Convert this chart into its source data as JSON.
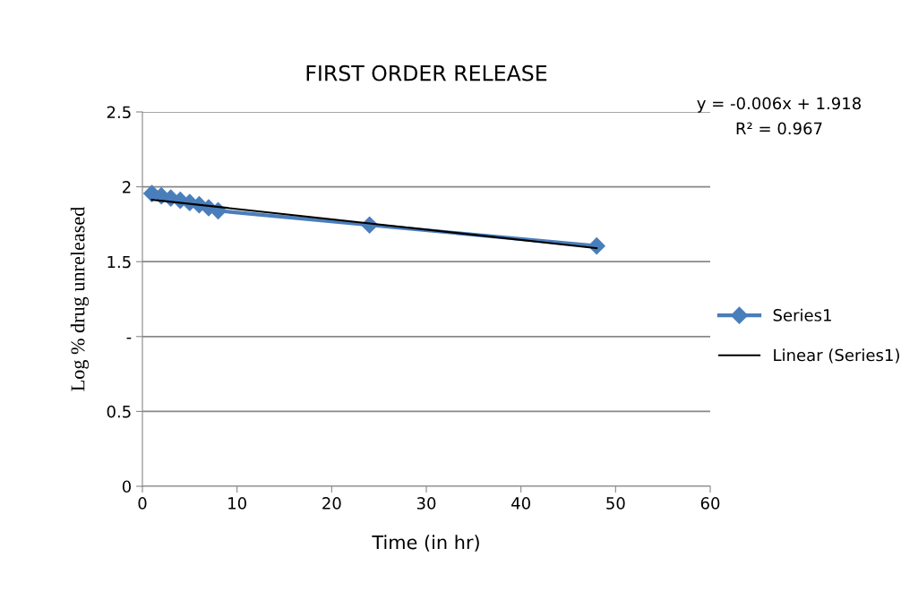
{
  "chart_data": {
    "type": "line",
    "title": "FIRST ORDER RELEASE",
    "xlabel": "Time (in hr)",
    "ylabel": "Log % drug unreleased",
    "series": [
      {
        "name": "Series1",
        "color": "#4a7ebb",
        "x": [
          1,
          2,
          3,
          4,
          5,
          6,
          7,
          8,
          24,
          48
        ],
        "values": [
          1.955,
          1.94,
          1.925,
          1.91,
          1.895,
          1.88,
          1.86,
          1.84,
          1.745,
          1.605
        ],
        "marker": "diamond"
      },
      {
        "name": "Linear (Series1)",
        "color": "#000000",
        "x": [
          1,
          48
        ],
        "values": [
          1.914,
          1.59
        ],
        "marker": "none"
      }
    ],
    "xlim": [
      0,
      60
    ],
    "xticks": [
      0,
      10,
      20,
      30,
      40,
      50,
      60
    ],
    "ylim": [
      0,
      2.5
    ],
    "yticks": [
      0,
      0.5,
      {
        "value": 1,
        "label": "-"
      },
      1.5,
      2,
      2.5
    ],
    "grid": "y",
    "legend": "right",
    "annotations": [
      "y = -0.006x + 1.918",
      "R² = 0.967"
    ]
  }
}
